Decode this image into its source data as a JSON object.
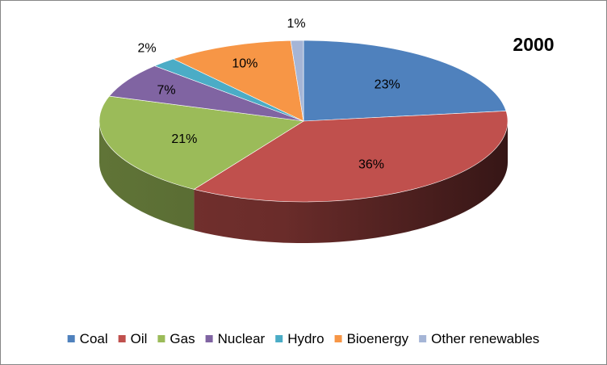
{
  "chart_data": {
    "type": "pie",
    "title": "2000",
    "legend_position": "bottom",
    "series": [
      {
        "name": "Coal",
        "value": 23,
        "label": "23%",
        "color": "#4F81BD"
      },
      {
        "name": "Oil",
        "value": 36,
        "label": "36%",
        "color": "#C0504D"
      },
      {
        "name": "Gas",
        "value": 21,
        "label": "21%",
        "color": "#9BBB59"
      },
      {
        "name": "Nuclear",
        "value": 7,
        "label": "7%",
        "color": "#8064A2"
      },
      {
        "name": "Hydro",
        "value": 2,
        "label": "2%",
        "color": "#4BACC6"
      },
      {
        "name": "Bioenergy",
        "value": 10,
        "label": "10%",
        "color": "#F79646"
      },
      {
        "name": "Other renewables",
        "value": 1,
        "label": "1%",
        "color": "#A5B5D6"
      }
    ]
  }
}
